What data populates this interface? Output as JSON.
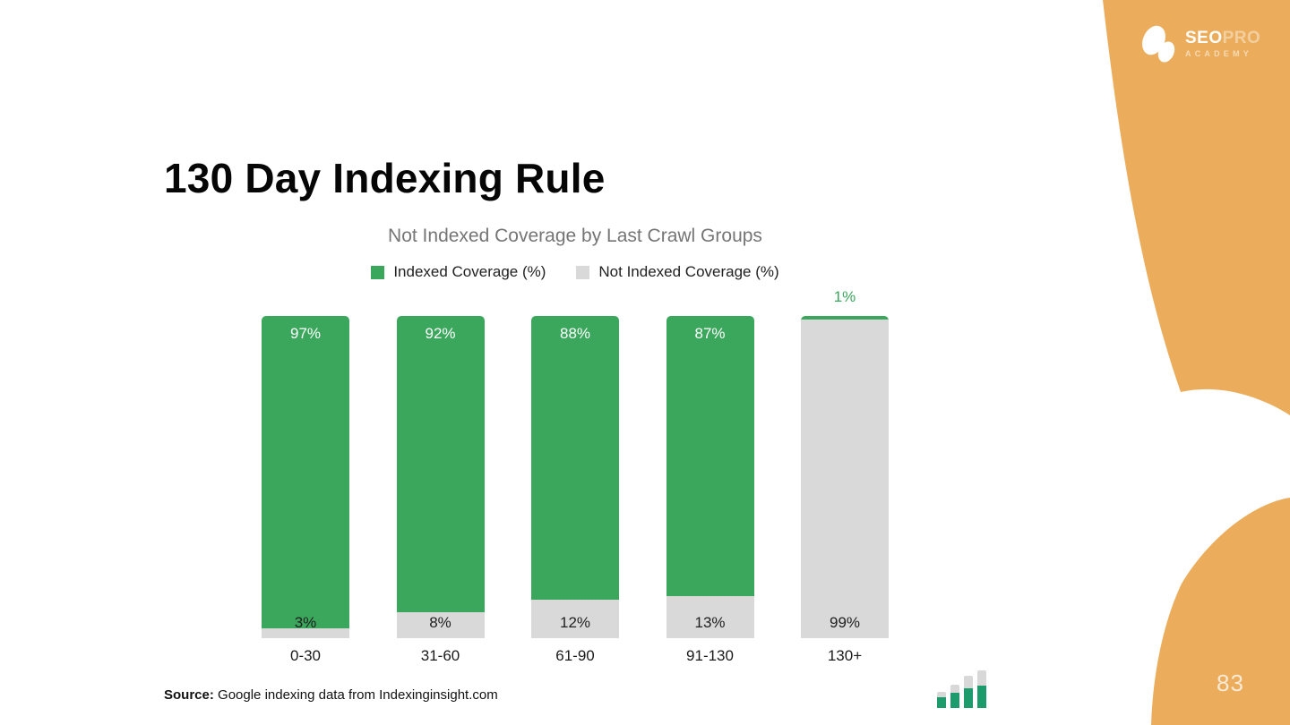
{
  "slide": {
    "title": "130 Day Indexing Rule",
    "page_number": "83",
    "source_label": "Source:",
    "source_text": "Google indexing data from Indexinginsight.com"
  },
  "logo": {
    "name_primary": "SEO",
    "name_secondary": "PRO",
    "subtitle": "ACADEMY"
  },
  "icons": {
    "logo_mark": "leaf-circle-icon",
    "footer_mark": "ascending-bar-chart-icon"
  },
  "colors": {
    "accent_orange": "#ebad5c",
    "indexed_green": "#3aa75c",
    "not_indexed_gray": "#d9d9d9",
    "chart_title_gray": "#757575",
    "mini_icon_green": "#1c9c6c"
  },
  "chart_data": {
    "type": "bar",
    "stacked": true,
    "title": "Not Indexed Coverage by Last Crawl Groups",
    "xlabel": "",
    "ylabel": "",
    "ylim": [
      0,
      100
    ],
    "grid": false,
    "legend_position": "top",
    "categories": [
      "0-30",
      "31-60",
      "61-90",
      "91-130",
      "130+"
    ],
    "series": [
      {
        "name": "Indexed Coverage (%)",
        "color": "#3aa75c",
        "values": [
          97,
          92,
          88,
          87,
          1
        ]
      },
      {
        "name": "Not Indexed Coverage (%)",
        "color": "#d9d9d9",
        "values": [
          3,
          8,
          12,
          13,
          99
        ]
      }
    ],
    "data_labels": {
      "indexed": [
        "97%",
        "92%",
        "88%",
        "87%",
        "1%"
      ],
      "not_indexed": [
        "3%",
        "8%",
        "12%",
        "13%",
        "99%"
      ]
    }
  }
}
